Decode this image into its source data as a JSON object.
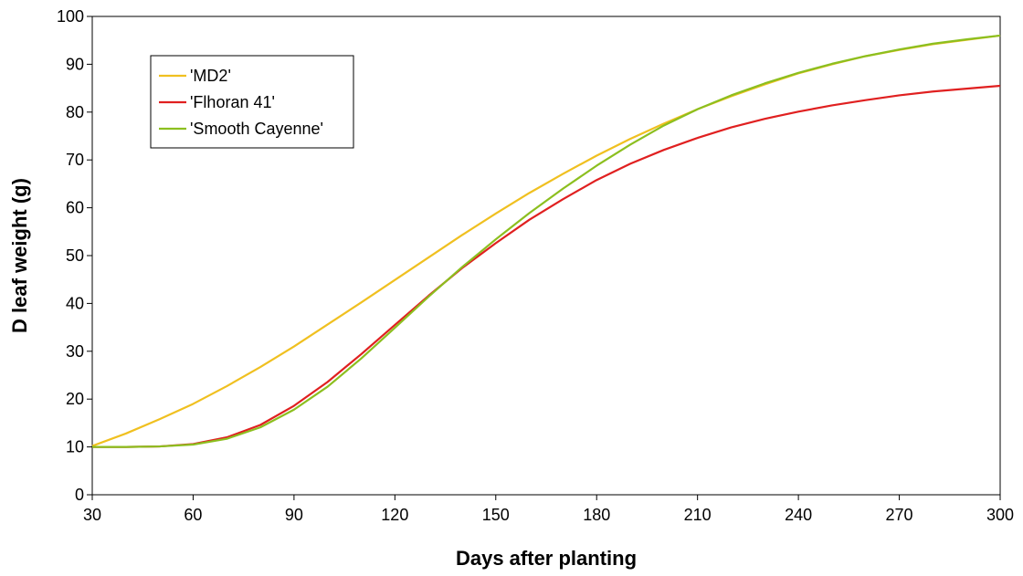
{
  "chart_data": {
    "type": "line",
    "title": "",
    "xlabel": "Days after planting",
    "ylabel": "D leaf weight (g)",
    "xlim": [
      30,
      300
    ],
    "ylim": [
      0,
      100
    ],
    "x_ticks": [
      30,
      60,
      90,
      120,
      150,
      180,
      210,
      240,
      270,
      300
    ],
    "y_ticks": [
      0,
      10,
      20,
      30,
      40,
      50,
      60,
      70,
      80,
      90,
      100
    ],
    "grid": false,
    "legend_position": "top-left",
    "series": [
      {
        "name": "'MD2'",
        "color": "#f0c020",
        "x": [
          30,
          40,
          50,
          60,
          70,
          80,
          90,
          100,
          110,
          120,
          130,
          140,
          150,
          160,
          170,
          180,
          190,
          200,
          210,
          220,
          230,
          240,
          250,
          260,
          270,
          280,
          290,
          300
        ],
        "y": [
          10.2,
          12.8,
          15.8,
          19.0,
          22.7,
          26.7,
          31.0,
          35.6,
          40.2,
          44.9,
          49.6,
          54.3,
          58.8,
          63.1,
          67.1,
          70.9,
          74.4,
          77.6,
          80.6,
          83.3,
          85.8,
          88.1,
          90.0,
          91.7,
          93.0,
          94.2,
          95.1,
          96.0
        ]
      },
      {
        "name": "'Flhoran 41'",
        "color": "#e02020",
        "x": [
          30,
          40,
          50,
          60,
          70,
          80,
          90,
          100,
          110,
          120,
          130,
          140,
          150,
          160,
          170,
          180,
          190,
          200,
          210,
          220,
          230,
          240,
          250,
          260,
          270,
          280,
          290,
          300
        ],
        "y": [
          10.0,
          10.0,
          10.1,
          10.6,
          12.0,
          14.6,
          18.6,
          23.6,
          29.4,
          35.5,
          41.6,
          47.4,
          52.6,
          57.5,
          61.8,
          65.8,
          69.2,
          72.1,
          74.6,
          76.8,
          78.6,
          80.1,
          81.4,
          82.5,
          83.5,
          84.3,
          84.9,
          85.5
        ]
      },
      {
        "name": "'Smooth Cayenne'",
        "color": "#8cbf1f",
        "x": [
          30,
          40,
          50,
          60,
          70,
          80,
          90,
          100,
          110,
          120,
          130,
          140,
          150,
          160,
          170,
          180,
          190,
          200,
          210,
          220,
          230,
          240,
          250,
          260,
          270,
          280,
          290,
          300
        ],
        "y": [
          10.0,
          10.0,
          10.1,
          10.5,
          11.7,
          14.1,
          17.8,
          22.6,
          28.5,
          34.9,
          41.4,
          47.6,
          53.4,
          58.9,
          64.0,
          68.8,
          73.2,
          77.2,
          80.6,
          83.5,
          86.0,
          88.2,
          90.1,
          91.7,
          93.1,
          94.3,
          95.2,
          96.0
        ]
      }
    ]
  }
}
